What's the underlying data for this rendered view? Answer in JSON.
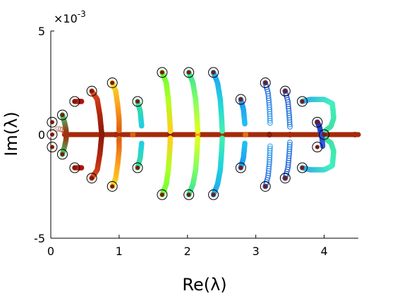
{
  "chart_data": {
    "type": "scatter",
    "title": "",
    "xlabel": "Re(λ)",
    "ylabel": "Im(λ)",
    "xlim": [
      0,
      4.5
    ],
    "ylim": [
      -0.005,
      0.005
    ],
    "x_ticks": [
      0,
      1,
      2,
      3,
      4
    ],
    "x_tick_labels": [
      "0",
      "1",
      "2",
      "3",
      "4"
    ],
    "y_ticks": [
      -0.005,
      0,
      0.005
    ],
    "y_tick_labels": [
      "-5",
      "0",
      "5"
    ],
    "y_scale_label": "×10",
    "y_scale_exponent": "-3",
    "grid": false,
    "legend": "none",
    "colormap": "jet",
    "real_axis_segment": {
      "x_start": 0.2,
      "x_end": 4.5,
      "y": 0,
      "color": "#a52a0a"
    },
    "circled_endpoints": [
      [
        0.02,
        0.0
      ],
      [
        0.02,
        0.0006
      ],
      [
        0.02,
        -0.0006
      ],
      [
        0.17,
        0.00095
      ],
      [
        0.17,
        -0.00095
      ],
      [
        0.35,
        0.0016
      ],
      [
        0.35,
        -0.0016
      ],
      [
        0.6,
        0.0021
      ],
      [
        0.6,
        -0.0021
      ],
      [
        0.9,
        0.0025
      ],
      [
        0.9,
        -0.0025
      ],
      [
        1.27,
        0.0016
      ],
      [
        1.27,
        -0.0016
      ],
      [
        1.63,
        0.003
      ],
      [
        1.63,
        -0.0029
      ],
      [
        2.02,
        0.003
      ],
      [
        2.02,
        -0.0029
      ],
      [
        2.38,
        0.003
      ],
      [
        2.38,
        -0.0029
      ],
      [
        2.78,
        0.0017
      ],
      [
        2.78,
        -0.0016
      ],
      [
        3.14,
        0.0025
      ],
      [
        3.14,
        -0.0025
      ],
      [
        3.43,
        0.0021
      ],
      [
        3.43,
        -0.0021
      ],
      [
        3.68,
        0.0016
      ],
      [
        3.68,
        -0.0016
      ],
      [
        3.9,
        0.0006
      ],
      [
        3.9,
        -0.0006
      ],
      [
        4.0,
        0.0
      ]
    ],
    "branches": [
      {
        "points": [
          [
            0.02,
            0
          ],
          [
            0.06,
            0.0002
          ],
          [
            0.1,
            0.0003
          ],
          [
            0.2,
            0.0002
          ],
          [
            0.22,
            0
          ]
        ],
        "colors": [
          "#ffffff",
          "#a52a0a"
        ],
        "style": "open"
      },
      {
        "points": [
          [
            0.17,
            0.00095
          ],
          [
            0.2,
            0.0006
          ],
          [
            0.22,
            0.0003
          ],
          [
            0.23,
            0
          ]
        ],
        "colors": [
          "#2fe07a",
          "#a52a0a"
        ],
        "style": "filled"
      },
      {
        "points": [
          [
            0.17,
            -0.00095
          ],
          [
            0.2,
            -0.0006
          ],
          [
            0.22,
            -0.0003
          ],
          [
            0.23,
            0
          ]
        ],
        "colors": [
          "#2fe07a",
          "#a52a0a"
        ],
        "style": "filled"
      },
      {
        "points": [
          [
            0.35,
            0.0016
          ],
          [
            0.42,
            0.0016
          ],
          [
            0.45,
            0.0016
          ]
        ],
        "colors": [
          "#d04020",
          "#b01010"
        ],
        "style": "filled"
      },
      {
        "points": [
          [
            0.35,
            -0.0016
          ],
          [
            0.42,
            -0.0016
          ],
          [
            0.45,
            -0.0016
          ]
        ],
        "colors": [
          "#d04020",
          "#b01010"
        ],
        "style": "filled"
      },
      {
        "points": [
          [
            0.6,
            0.0021
          ],
          [
            0.68,
            0.0017
          ],
          [
            0.72,
            0.0009
          ],
          [
            0.74,
            0.0002
          ],
          [
            0.75,
            0
          ]
        ],
        "colors": [
          "#e05020",
          "#b82a10",
          "#8a1a08"
        ],
        "style": "filled"
      },
      {
        "points": [
          [
            0.6,
            -0.0021
          ],
          [
            0.68,
            -0.0017
          ],
          [
            0.72,
            -0.0009
          ],
          [
            0.74,
            -0.0002
          ],
          [
            0.75,
            0
          ]
        ],
        "colors": [
          "#e05020",
          "#b82a10",
          "#8a1a08"
        ],
        "style": "filled"
      },
      {
        "points": [
          [
            0.9,
            0.0025
          ],
          [
            0.95,
            0.0021
          ],
          [
            0.98,
            0.0014
          ],
          [
            1.0,
            0.0007
          ],
          [
            1.0,
            0.00015
          ]
        ],
        "colors": [
          "#f0e020",
          "#ffa020",
          "#e06010"
        ],
        "style": "filled"
      },
      {
        "points": [
          [
            0.9,
            -0.0025
          ],
          [
            0.95,
            -0.0021
          ],
          [
            0.98,
            -0.0014
          ],
          [
            1.0,
            -0.0007
          ],
          [
            1.0,
            -0.00015
          ]
        ],
        "colors": [
          "#f0e020",
          "#ffa020",
          "#e06010"
        ],
        "style": "filled"
      },
      {
        "points": [
          [
            1.27,
            0.0016
          ],
          [
            1.31,
            0.0011
          ],
          [
            1.33,
            0.0004
          ]
        ],
        "colors": [
          "#40e090",
          "#20d0e0"
        ],
        "style": "filled"
      },
      {
        "points": [
          [
            1.27,
            -0.0016
          ],
          [
            1.31,
            -0.0011
          ],
          [
            1.33,
            -0.0004
          ]
        ],
        "colors": [
          "#40e090",
          "#20d0e0"
        ],
        "style": "filled"
      },
      {
        "points": [
          [
            1.63,
            0.003
          ],
          [
            1.69,
            0.0025
          ],
          [
            1.72,
            0.0017
          ],
          [
            1.74,
            0.0008
          ],
          [
            1.75,
            0.00015
          ]
        ],
        "colors": [
          "#60ff40",
          "#b0ff20",
          "#ffd020"
        ],
        "style": "filled"
      },
      {
        "points": [
          [
            1.63,
            -0.0029
          ],
          [
            1.69,
            -0.0024
          ],
          [
            1.72,
            -0.0017
          ],
          [
            1.74,
            -0.0008
          ],
          [
            1.75,
            -0.00015
          ]
        ],
        "colors": [
          "#60ff40",
          "#b0ff20",
          "#ffd020"
        ],
        "style": "filled"
      },
      {
        "points": [
          [
            2.02,
            0.003
          ],
          [
            2.08,
            0.0025
          ],
          [
            2.12,
            0.0017
          ],
          [
            2.14,
            0.0008
          ],
          [
            2.15,
            0.00015
          ]
        ],
        "colors": [
          "#30e0a0",
          "#80ff60",
          "#e0ff20"
        ],
        "style": "filled"
      },
      {
        "points": [
          [
            2.02,
            -0.0029
          ],
          [
            2.08,
            -0.0024
          ],
          [
            2.12,
            -0.0017
          ],
          [
            2.14,
            -0.0008
          ],
          [
            2.15,
            -0.00015
          ]
        ],
        "colors": [
          "#30e0a0",
          "#80ff60",
          "#e0ff20"
        ],
        "style": "filled"
      },
      {
        "points": [
          [
            2.38,
            0.003
          ],
          [
            2.44,
            0.0025
          ],
          [
            2.48,
            0.0017
          ],
          [
            2.5,
            0.0008
          ],
          [
            2.51,
            0.00015
          ]
        ],
        "colors": [
          "#20a0f0",
          "#20d0e0",
          "#40f0b0"
        ],
        "style": "filled"
      },
      {
        "points": [
          [
            2.38,
            -0.0029
          ],
          [
            2.44,
            -0.0024
          ],
          [
            2.48,
            -0.0017
          ],
          [
            2.5,
            -0.0008
          ],
          [
            2.51,
            -0.00015
          ]
        ],
        "colors": [
          "#20a0f0",
          "#20d0e0",
          "#40f0b0"
        ],
        "style": "filled"
      },
      {
        "points": [
          [
            2.78,
            0.0017
          ],
          [
            2.82,
            0.0012
          ],
          [
            2.84,
            0.0005
          ]
        ],
        "colors": [
          "#2090f0",
          "#20c0f0"
        ],
        "style": "filled"
      },
      {
        "points": [
          [
            2.78,
            -0.0016
          ],
          [
            2.82,
            -0.0011
          ],
          [
            2.84,
            -0.0004
          ]
        ],
        "colors": [
          "#2090f0",
          "#20c0f0"
        ],
        "style": "filled"
      },
      {
        "points": [
          [
            3.14,
            0.0025
          ],
          [
            3.18,
            0.002
          ],
          [
            3.2,
            0.0013
          ],
          [
            3.21,
            0.0005
          ]
        ],
        "colors": [
          "#2060e0",
          "#30a0f0"
        ],
        "style": "open"
      },
      {
        "points": [
          [
            3.14,
            -0.0025
          ],
          [
            3.18,
            -0.002
          ],
          [
            3.2,
            -0.0013
          ],
          [
            3.21,
            -0.0005
          ]
        ],
        "colors": [
          "#2060e0",
          "#30a0f0"
        ],
        "style": "open"
      },
      {
        "points": [
          [
            3.43,
            0.0021
          ],
          [
            3.47,
            0.0016
          ],
          [
            3.49,
            0.0009
          ],
          [
            3.5,
            0.0003
          ]
        ],
        "colors": [
          "#2050d0",
          "#2080e0"
        ],
        "style": "open"
      },
      {
        "points": [
          [
            3.43,
            -0.0021
          ],
          [
            3.47,
            -0.0016
          ],
          [
            3.49,
            -0.0009
          ],
          [
            3.5,
            -0.0003
          ]
        ],
        "colors": [
          "#2050d0",
          "#2080e0"
        ],
        "style": "open"
      },
      {
        "points": [
          [
            3.68,
            0.0016
          ],
          [
            3.8,
            0.0017
          ],
          [
            4.0,
            0.0017
          ],
          [
            4.12,
            0.0015
          ],
          [
            4.14,
            0.0008
          ],
          [
            4.1,
            0.0004
          ],
          [
            4.02,
            0.0002
          ]
        ],
        "colors": [
          "#30a0f0",
          "#40f0c0",
          "#40e0a0"
        ],
        "style": "filled"
      },
      {
        "points": [
          [
            3.68,
            -0.0016
          ],
          [
            3.8,
            -0.0017
          ],
          [
            4.0,
            -0.0017
          ],
          [
            4.12,
            -0.0015
          ],
          [
            4.14,
            -0.0008
          ],
          [
            4.1,
            -0.0004
          ],
          [
            4.02,
            -0.0002
          ]
        ],
        "colors": [
          "#30a0f0",
          "#40f0c0",
          "#40e0a0"
        ],
        "style": "filled"
      },
      {
        "points": [
          [
            3.9,
            0.0006
          ],
          [
            3.93,
            0.0004
          ],
          [
            3.95,
            0.0001
          ],
          [
            3.97,
            -0.0002
          ],
          [
            3.98,
            -0.0006
          ]
        ],
        "colors": [
          "#2030c0",
          "#3060e0"
        ],
        "style": "filled"
      }
    ],
    "real_axis_markers": [
      {
        "x": 0.95,
        "color": "#a52a0a"
      },
      {
        "x": 1.2,
        "color": "#e06010"
      },
      {
        "x": 1.75,
        "color": "#8a1a08"
      },
      {
        "x": 2.15,
        "color": "#ff9010"
      },
      {
        "x": 2.5,
        "color": "#a52a0a"
      },
      {
        "x": 2.85,
        "color": "#e07010"
      },
      {
        "x": 3.2,
        "color": "#8a1a08"
      },
      {
        "x": 3.5,
        "color": "#a52a0a"
      },
      {
        "x": 4.0,
        "color": "#802010"
      },
      {
        "x": 4.45,
        "color": "#a52a0a"
      }
    ]
  }
}
